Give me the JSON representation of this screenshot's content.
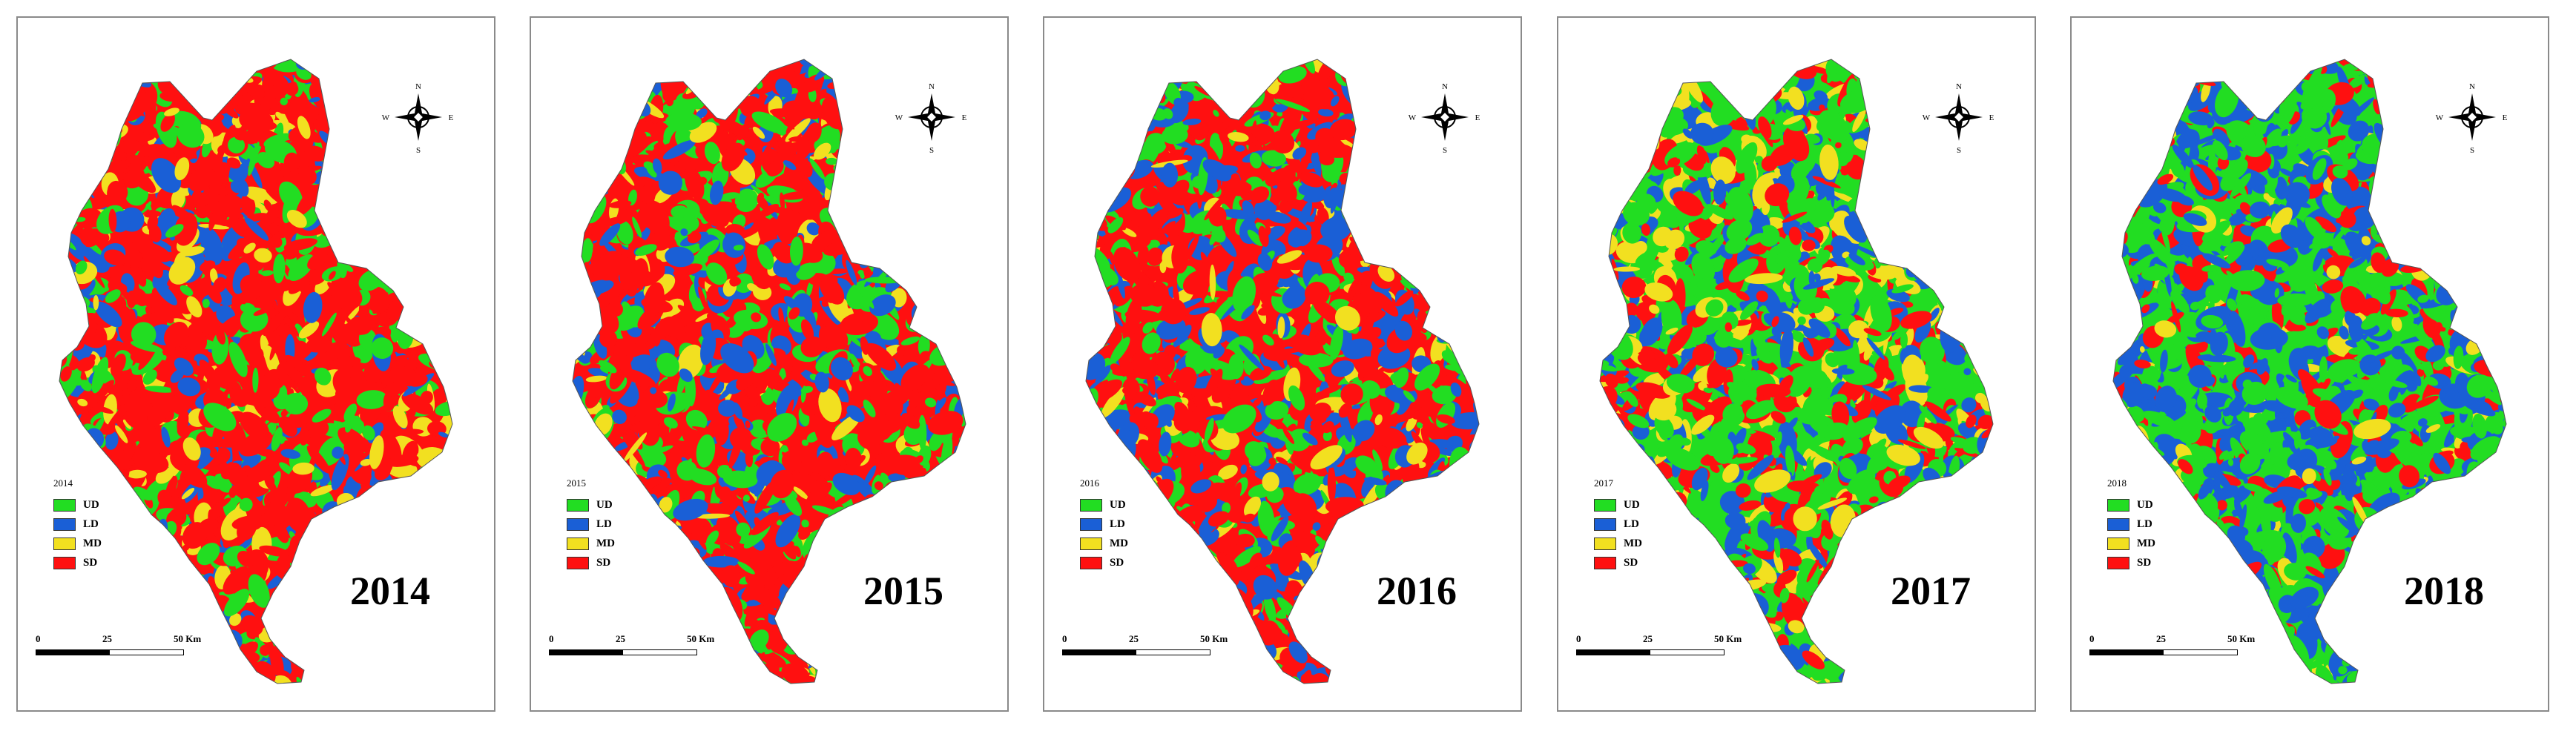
{
  "legend_classes": [
    {
      "code": "UD",
      "color": "#22dd22"
    },
    {
      "code": "LD",
      "color": "#1a5fd6"
    },
    {
      "code": "MD",
      "color": "#f2e020"
    },
    {
      "code": "SD",
      "color": "#ff1010"
    }
  ],
  "compass": {
    "n": "N",
    "s": "S",
    "e": "E",
    "w": "W"
  },
  "scale": {
    "tick0": "0",
    "tick1": "25",
    "tick2": "50 Km"
  },
  "panels": [
    {
      "year": "2014",
      "legend_year": "2014",
      "mix": {
        "UD": 0.18,
        "LD": 0.12,
        "MD": 0.08,
        "SD": 0.62
      }
    },
    {
      "year": "2015",
      "legend_year": "2015",
      "mix": {
        "UD": 0.22,
        "LD": 0.18,
        "MD": 0.06,
        "SD": 0.54
      }
    },
    {
      "year": "2016",
      "legend_year": "2016",
      "mix": {
        "UD": 0.22,
        "LD": 0.24,
        "MD": 0.06,
        "SD": 0.48
      }
    },
    {
      "year": "2017",
      "legend_year": "2017",
      "mix": {
        "UD": 0.4,
        "LD": 0.22,
        "MD": 0.14,
        "SD": 0.24
      }
    },
    {
      "year": "2018",
      "legend_year": "2018",
      "mix": {
        "UD": 0.42,
        "LD": 0.36,
        "MD": 0.06,
        "SD": 0.16
      }
    }
  ]
}
